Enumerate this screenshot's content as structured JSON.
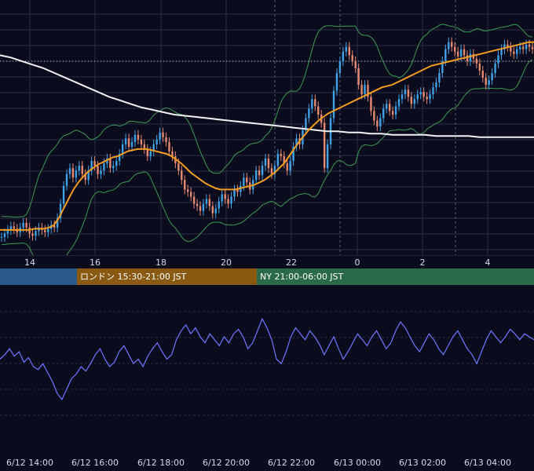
{
  "colors": {
    "background": "#0b0b1e",
    "grid": "#2a2d45",
    "candle_up": "#3fa3e6",
    "candle_down": "#e68a72",
    "ma_fast": "#f39c1e",
    "ma_slow": "#f2f2f2",
    "bollinger": "#3a9a55",
    "oscillator": "#6f78ff",
    "session_tokyo": "#2a5a8a",
    "session_london": "#8a5a12",
    "session_ny": "#2a6a48"
  },
  "sessions": [
    {
      "label": "",
      "color": "#2a5a8a"
    },
    {
      "label": "ロンドン 15:30-21:00 JST",
      "color": "#8a5a12"
    },
    {
      "label": "NY 21:00-06:00 JST",
      "color": "#2a6a48"
    }
  ],
  "chart_data": [
    {
      "type": "candlestick",
      "title": "",
      "x_tick_labels": [
        "14",
        "16",
        "18",
        "20",
        "22",
        "0",
        "2",
        "4"
      ],
      "price_series": [
        0.02,
        0.05,
        0.08,
        0.11,
        0.09,
        0.06,
        0.1,
        0.14,
        0.1,
        0.05,
        0.03,
        0.07,
        0.1,
        0.08,
        0.06,
        0.09,
        0.12,
        0.1,
        0.18,
        0.3,
        0.45,
        0.55,
        0.6,
        0.52,
        0.58,
        0.62,
        0.55,
        0.5,
        0.58,
        0.66,
        0.62,
        0.55,
        0.58,
        0.64,
        0.68,
        0.6,
        0.62,
        0.66,
        0.72,
        0.8,
        0.85,
        0.78,
        0.82,
        0.88,
        0.84,
        0.8,
        0.76,
        0.7,
        0.74,
        0.8,
        0.84,
        0.9,
        0.86,
        0.82,
        0.74,
        0.7,
        0.64,
        0.58,
        0.5,
        0.42,
        0.4,
        0.36,
        0.3,
        0.28,
        0.24,
        0.3,
        0.34,
        0.28,
        0.22,
        0.26,
        0.32,
        0.38,
        0.34,
        0.3,
        0.36,
        0.42,
        0.4,
        0.45,
        0.52,
        0.48,
        0.42,
        0.5,
        0.58,
        0.54,
        0.62,
        0.68,
        0.6,
        0.55,
        0.62,
        0.72,
        0.7,
        0.64,
        0.58,
        0.66,
        0.78,
        0.85,
        0.8,
        0.92,
        1.02,
        1.1,
        1.18,
        1.12,
        1.05,
        0.98,
        0.6,
        0.8,
        1.02,
        1.25,
        1.4,
        1.5,
        1.58,
        1.62,
        1.55,
        1.5,
        1.44,
        1.3,
        1.22,
        1.3,
        1.2,
        1.08,
        1.0,
        0.95,
        1.02,
        1.1,
        1.14,
        1.08,
        1.05,
        1.12,
        1.18,
        1.22,
        1.26,
        1.2,
        1.14,
        1.18,
        1.22,
        1.24,
        1.2,
        1.18,
        1.22,
        1.28,
        1.32,
        1.4,
        1.5,
        1.6,
        1.66,
        1.62,
        1.58,
        1.54,
        1.6,
        1.55,
        1.5,
        1.56,
        1.52,
        1.48,
        1.42,
        1.36,
        1.3,
        1.34,
        1.4,
        1.48,
        1.55,
        1.6,
        1.64,
        1.62,
        1.58,
        1.56,
        1.6,
        1.62,
        1.6,
        1.64,
        1.62,
        1.6
      ],
      "ma_fast_series": [
        0.08,
        0.08,
        0.08,
        0.08,
        0.08,
        0.08,
        0.08,
        0.09,
        0.09,
        0.09,
        0.1,
        0.12,
        0.18,
        0.26,
        0.34,
        0.42,
        0.48,
        0.53,
        0.57,
        0.6,
        0.63,
        0.65,
        0.67,
        0.69,
        0.7,
        0.72,
        0.74,
        0.75,
        0.76,
        0.76,
        0.76,
        0.75,
        0.74,
        0.73,
        0.72,
        0.7,
        0.67,
        0.64,
        0.6,
        0.56,
        0.53,
        0.5,
        0.47,
        0.45,
        0.43,
        0.42,
        0.42,
        0.42,
        0.42,
        0.43,
        0.44,
        0.45,
        0.46,
        0.48,
        0.5,
        0.53,
        0.56,
        0.6,
        0.64,
        0.7,
        0.76,
        0.82,
        0.87,
        0.92,
        0.96,
        1.0,
        1.03,
        1.06,
        1.08,
        1.1,
        1.12,
        1.14,
        1.16,
        1.18,
        1.2,
        1.22,
        1.24,
        1.26,
        1.28,
        1.29,
        1.3,
        1.32,
        1.34,
        1.36,
        1.38,
        1.4,
        1.42,
        1.44,
        1.46,
        1.47,
        1.48,
        1.49,
        1.5,
        1.51,
        1.52,
        1.53,
        1.54,
        1.55,
        1.56,
        1.57,
        1.58,
        1.59,
        1.6,
        1.61,
        1.62,
        1.63,
        1.64,
        1.65,
        1.66,
        1.66
      ],
      "ma_slow_series": [
        1.55,
        1.53,
        1.5,
        1.47,
        1.44,
        1.4,
        1.36,
        1.32,
        1.28,
        1.24,
        1.2,
        1.17,
        1.14,
        1.11,
        1.09,
        1.07,
        1.05,
        1.04,
        1.03,
        1.02,
        1.01,
        1.0,
        0.99,
        0.98,
        0.97,
        0.96,
        0.95,
        0.94,
        0.93,
        0.92,
        0.91,
        0.91,
        0.9,
        0.9,
        0.89,
        0.89,
        0.88,
        0.88,
        0.88,
        0.88,
        0.87,
        0.87,
        0.87,
        0.87,
        0.86,
        0.86,
        0.86,
        0.86,
        0.86,
        0.86
      ],
      "ylim": [
        0,
        1.75
      ]
    },
    {
      "type": "line",
      "title": "",
      "x_tick_labels": [
        "6/12 14:00",
        "6/12 16:00",
        "6/12 18:00",
        "6/12 20:00",
        "6/12 22:00",
        "6/13 00:00",
        "6/13 02:00",
        "6/13 04:00"
      ],
      "values": [
        55,
        58,
        62,
        57,
        60,
        53,
        56,
        50,
        48,
        52,
        46,
        40,
        32,
        28,
        35,
        42,
        45,
        50,
        47,
        52,
        58,
        62,
        55,
        50,
        53,
        60,
        64,
        58,
        52,
        55,
        50,
        57,
        62,
        66,
        60,
        55,
        58,
        68,
        74,
        78,
        72,
        76,
        70,
        66,
        72,
        68,
        64,
        70,
        66,
        72,
        75,
        70,
        62,
        66,
        74,
        82,
        76,
        68,
        55,
        52,
        60,
        70,
        76,
        72,
        68,
        74,
        70,
        65,
        58,
        64,
        70,
        62,
        55,
        60,
        66,
        72,
        68,
        64,
        70,
        74,
        68,
        62,
        66,
        74,
        80,
        76,
        70,
        64,
        60,
        66,
        72,
        68,
        62,
        58,
        64,
        70,
        74,
        68,
        62,
        58,
        52,
        60,
        68,
        74,
        70,
        66,
        70,
        75,
        72,
        68,
        72,
        70,
        68
      ],
      "ylim": [
        0,
        100
      ]
    }
  ]
}
